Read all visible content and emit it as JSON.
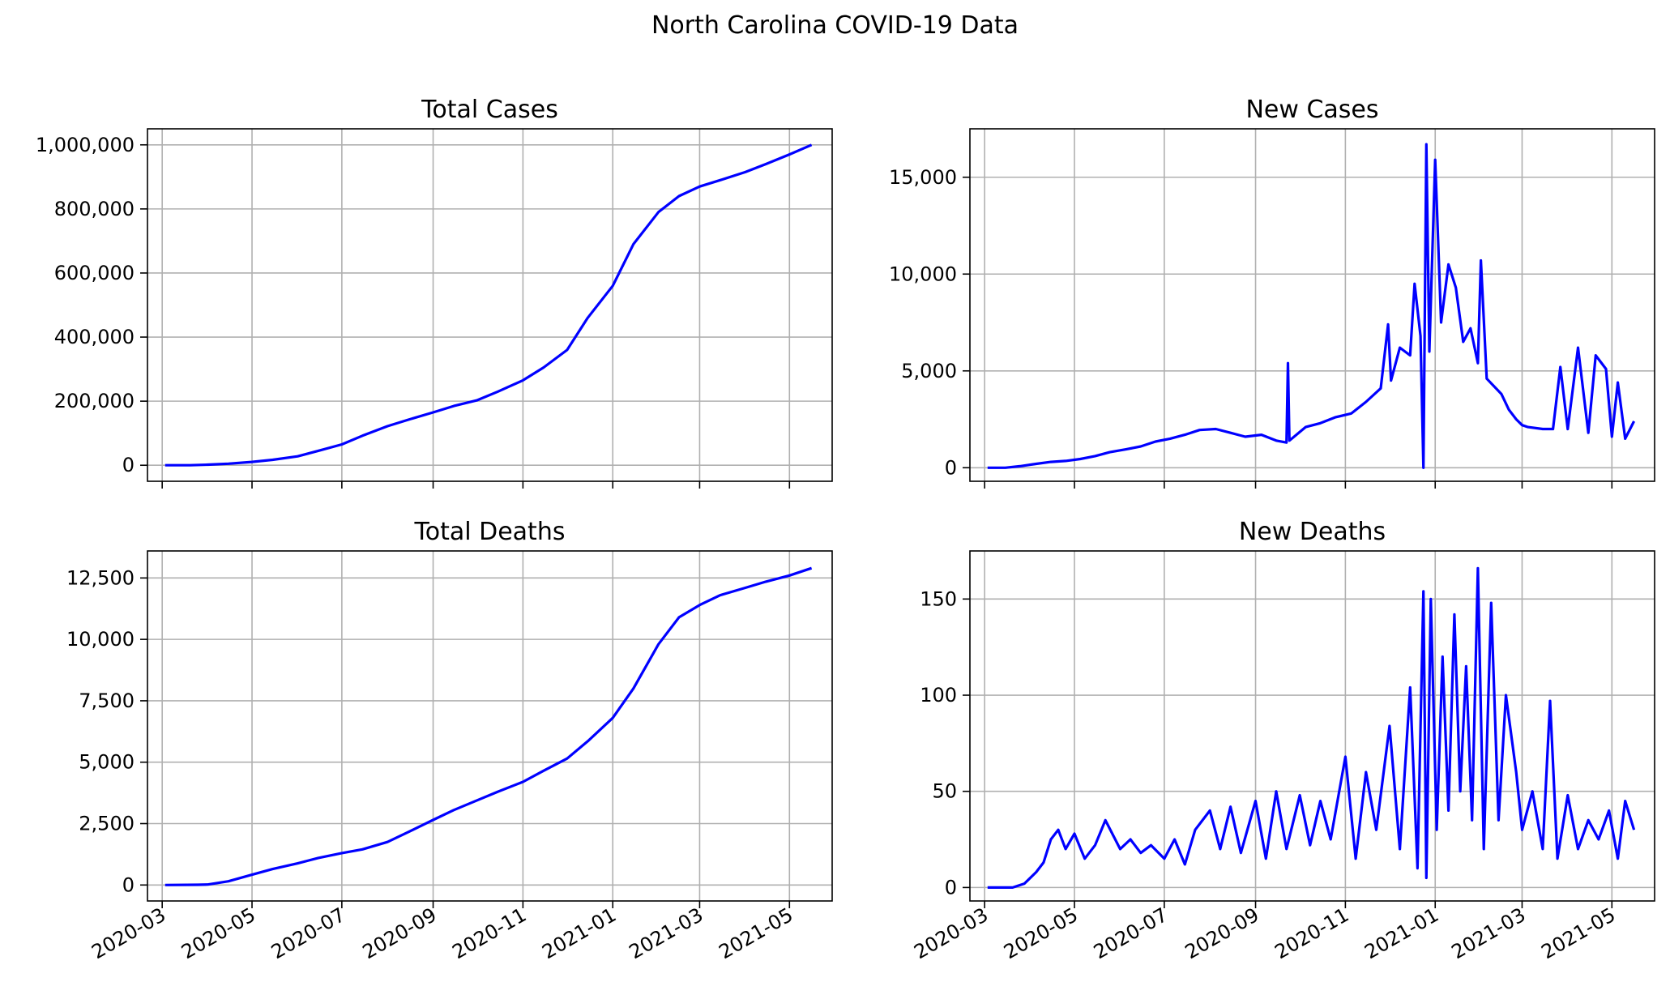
{
  "figure": {
    "title": "North Carolina COVID-19 Data",
    "line_color": "#0000ff"
  },
  "chart_data": [
    {
      "type": "line",
      "title": "Total Cases",
      "xlabel": "",
      "ylabel": "",
      "grid": true,
      "xlim": [
        "2020-02-20",
        "2021-05-30"
      ],
      "ylim": [
        -50000,
        1050000
      ],
      "x_ticks": [
        "2020-03",
        "2020-05",
        "2020-07",
        "2020-09",
        "2020-11",
        "2021-01",
        "2021-03",
        "2021-05"
      ],
      "x_tick_labels_visible": false,
      "y_ticks": [
        0,
        200000,
        400000,
        600000,
        800000,
        1000000
      ],
      "y_tick_labels": [
        "0",
        "200,000",
        "400,000",
        "600,000",
        "800,000",
        "1,000,000"
      ],
      "x": [
        "2020-03-03",
        "2020-03-20",
        "2020-04-01",
        "2020-04-15",
        "2020-05-01",
        "2020-05-15",
        "2020-06-01",
        "2020-06-15",
        "2020-07-01",
        "2020-07-15",
        "2020-08-01",
        "2020-08-15",
        "2020-09-01",
        "2020-09-15",
        "2020-10-01",
        "2020-10-15",
        "2020-11-01",
        "2020-11-15",
        "2020-12-01",
        "2020-12-15",
        "2021-01-01",
        "2021-01-15",
        "2021-02-01",
        "2021-02-15",
        "2021-03-01",
        "2021-03-15",
        "2021-04-01",
        "2021-04-15",
        "2021-05-01",
        "2021-05-16"
      ],
      "values": [
        0,
        150,
        1800,
        5000,
        10500,
        17000,
        28000,
        45000,
        65000,
        92000,
        122000,
        142000,
        165000,
        185000,
        203000,
        230000,
        265000,
        305000,
        360000,
        460000,
        560000,
        690000,
        790000,
        840000,
        870000,
        890000,
        915000,
        940000,
        970000,
        1000000
      ]
    },
    {
      "type": "line",
      "title": "New Cases",
      "xlabel": "",
      "ylabel": "",
      "grid": true,
      "xlim": [
        "2020-02-20",
        "2021-05-30"
      ],
      "ylim": [
        -700,
        17500
      ],
      "x_ticks": [
        "2020-03",
        "2020-05",
        "2020-07",
        "2020-09",
        "2020-11",
        "2021-01",
        "2021-03",
        "2021-05"
      ],
      "x_tick_labels_visible": false,
      "y_ticks": [
        0,
        5000,
        10000,
        15000
      ],
      "y_tick_labels": [
        "0",
        "5,000",
        "10,000",
        "15,000"
      ],
      "x": [
        "2020-03-03",
        "2020-03-15",
        "2020-03-25",
        "2020-04-05",
        "2020-04-15",
        "2020-04-25",
        "2020-05-05",
        "2020-05-15",
        "2020-05-25",
        "2020-06-05",
        "2020-06-15",
        "2020-06-25",
        "2020-07-05",
        "2020-07-15",
        "2020-07-25",
        "2020-08-05",
        "2020-08-15",
        "2020-08-25",
        "2020-09-05",
        "2020-09-15",
        "2020-09-22",
        "2020-09-23",
        "2020-09-24",
        "2020-10-05",
        "2020-10-15",
        "2020-10-25",
        "2020-11-05",
        "2020-11-15",
        "2020-11-25",
        "2020-11-30",
        "2020-12-02",
        "2020-12-08",
        "2020-12-15",
        "2020-12-18",
        "2020-12-22",
        "2020-12-24",
        "2020-12-26",
        "2020-12-28",
        "2021-01-01",
        "2021-01-05",
        "2021-01-10",
        "2021-01-15",
        "2021-01-20",
        "2021-01-25",
        "2021-01-30",
        "2021-02-01",
        "2021-02-05",
        "2021-02-15",
        "2021-02-20",
        "2021-02-25",
        "2021-03-01",
        "2021-03-05",
        "2021-03-15",
        "2021-03-22",
        "2021-03-27",
        "2021-04-01",
        "2021-04-08",
        "2021-04-15",
        "2021-04-20",
        "2021-04-27",
        "2021-05-01",
        "2021-05-05",
        "2021-05-10",
        "2021-05-16"
      ],
      "values": [
        0,
        0,
        80,
        200,
        300,
        350,
        450,
        600,
        800,
        950,
        1100,
        1350,
        1500,
        1700,
        1950,
        2000,
        1800,
        1600,
        1700,
        1400,
        1300,
        5400,
        1400,
        2100,
        2300,
        2600,
        2800,
        3400,
        4100,
        7400,
        4500,
        6200,
        5800,
        9500,
        6800,
        0,
        16700,
        6000,
        15900,
        7500,
        10500,
        9300,
        6500,
        7200,
        5400,
        10700,
        4600,
        3800,
        3000,
        2500,
        2200,
        2100,
        2000,
        2000,
        5200,
        2000,
        6200,
        1800,
        5800,
        5100,
        1600,
        4400,
        1500,
        2400
      ]
    },
    {
      "type": "line",
      "title": "Total Deaths",
      "xlabel": "",
      "ylabel": "",
      "grid": true,
      "xlim": [
        "2020-02-20",
        "2021-05-30"
      ],
      "ylim": [
        -650,
        13600
      ],
      "x_ticks": [
        "2020-03",
        "2020-05",
        "2020-07",
        "2020-09",
        "2020-11",
        "2021-01",
        "2021-03",
        "2021-05"
      ],
      "x_tick_labels": [
        "2020-03",
        "2020-05",
        "2020-07",
        "2020-09",
        "2020-11",
        "2021-01",
        "2021-03",
        "2021-05"
      ],
      "x_tick_labels_visible": true,
      "y_ticks": [
        0,
        2500,
        5000,
        7500,
        10000,
        12500
      ],
      "y_tick_labels": [
        "0",
        "2,500",
        "5,000",
        "7,500",
        "10,000",
        "12,500"
      ],
      "x": [
        "2020-03-03",
        "2020-03-25",
        "2020-04-01",
        "2020-04-15",
        "2020-05-01",
        "2020-05-15",
        "2020-06-01",
        "2020-06-15",
        "2020-07-01",
        "2020-07-15",
        "2020-08-01",
        "2020-08-15",
        "2020-09-01",
        "2020-09-15",
        "2020-10-01",
        "2020-10-15",
        "2020-11-01",
        "2020-11-15",
        "2020-12-01",
        "2020-12-15",
        "2021-01-01",
        "2021-01-15",
        "2021-02-01",
        "2021-02-15",
        "2021-03-01",
        "2021-03-15",
        "2021-04-01",
        "2021-04-15",
        "2021-05-01",
        "2021-05-16"
      ],
      "values": [
        0,
        10,
        20,
        150,
        420,
        650,
        880,
        1100,
        1300,
        1450,
        1750,
        2150,
        2650,
        3050,
        3450,
        3800,
        4200,
        4650,
        5150,
        5850,
        6800,
        8000,
        9800,
        10900,
        11400,
        11800,
        12100,
        12350,
        12600,
        12900
      ]
    },
    {
      "type": "line",
      "title": "New Deaths",
      "xlabel": "",
      "ylabel": "",
      "grid": true,
      "xlim": [
        "2020-02-20",
        "2021-05-30"
      ],
      "ylim": [
        -7,
        175
      ],
      "x_ticks": [
        "2020-03",
        "2020-05",
        "2020-07",
        "2020-09",
        "2020-11",
        "2021-01",
        "2021-03",
        "2021-05"
      ],
      "x_tick_labels": [
        "2020-03",
        "2020-05",
        "2020-07",
        "2020-09",
        "2020-11",
        "2021-01",
        "2021-03",
        "2021-05"
      ],
      "x_tick_labels_visible": true,
      "y_ticks": [
        0,
        50,
        100,
        150
      ],
      "y_tick_labels": [
        "0",
        "50",
        "100",
        "150"
      ],
      "x": [
        "2020-03-03",
        "2020-03-20",
        "2020-03-28",
        "2020-04-05",
        "2020-04-10",
        "2020-04-15",
        "2020-04-20",
        "2020-04-25",
        "2020-05-01",
        "2020-05-08",
        "2020-05-15",
        "2020-05-22",
        "2020-06-01",
        "2020-06-08",
        "2020-06-15",
        "2020-06-22",
        "2020-07-01",
        "2020-07-08",
        "2020-07-15",
        "2020-07-22",
        "2020-08-01",
        "2020-08-08",
        "2020-08-15",
        "2020-08-22",
        "2020-09-01",
        "2020-09-08",
        "2020-09-15",
        "2020-09-22",
        "2020-10-01",
        "2020-10-08",
        "2020-10-15",
        "2020-10-22",
        "2020-11-01",
        "2020-11-08",
        "2020-11-15",
        "2020-11-22",
        "2020-12-01",
        "2020-12-08",
        "2020-12-15",
        "2020-12-20",
        "2020-12-24",
        "2020-12-26",
        "2020-12-29",
        "2021-01-02",
        "2021-01-06",
        "2021-01-10",
        "2021-01-14",
        "2021-01-18",
        "2021-01-22",
        "2021-01-26",
        "2021-01-30",
        "2021-02-03",
        "2021-02-08",
        "2021-02-13",
        "2021-02-18",
        "2021-02-25",
        "2021-03-01",
        "2021-03-08",
        "2021-03-15",
        "2021-03-20",
        "2021-03-25",
        "2021-04-01",
        "2021-04-08",
        "2021-04-15",
        "2021-04-22",
        "2021-04-29",
        "2021-05-05",
        "2021-05-10",
        "2021-05-16"
      ],
      "values": [
        0,
        0,
        2,
        8,
        13,
        25,
        30,
        20,
        28,
        15,
        22,
        35,
        20,
        25,
        18,
        22,
        15,
        25,
        12,
        30,
        40,
        20,
        42,
        18,
        45,
        15,
        50,
        20,
        48,
        22,
        45,
        25,
        68,
        15,
        60,
        30,
        84,
        20,
        104,
        10,
        154,
        5,
        150,
        30,
        120,
        40,
        142,
        50,
        115,
        35,
        166,
        20,
        148,
        35,
        100,
        60,
        30,
        50,
        20,
        97,
        15,
        48,
        20,
        35,
        25,
        40,
        15,
        45,
        30
      ]
    }
  ]
}
